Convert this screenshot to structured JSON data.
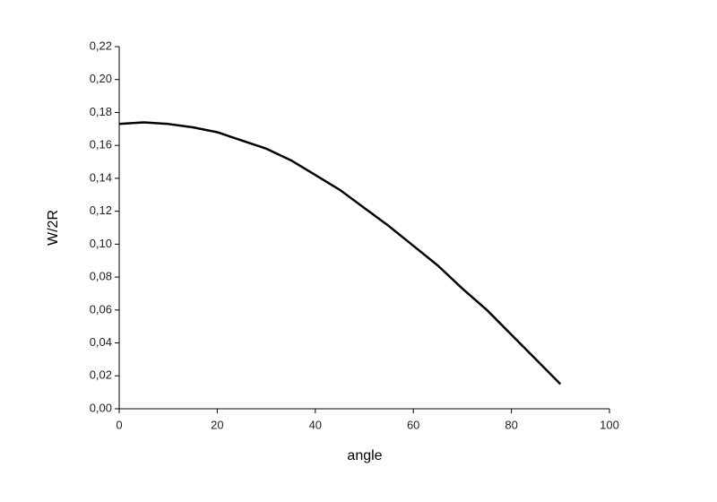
{
  "chart_data": {
    "type": "line",
    "xlabel": "angle",
    "ylabel": "W/2R",
    "x": [
      0,
      5,
      10,
      15,
      20,
      25,
      30,
      35,
      40,
      45,
      50,
      55,
      60,
      65,
      70,
      75,
      80,
      85,
      90
    ],
    "values": [
      0.173,
      0.174,
      0.173,
      0.171,
      0.168,
      0.163,
      0.158,
      0.151,
      0.142,
      0.133,
      0.122,
      0.111,
      0.099,
      0.087,
      0.073,
      0.06,
      0.045,
      0.03,
      0.015
    ],
    "color": "#000000",
    "xlim": [
      0,
      100
    ],
    "xticks": [
      0,
      20,
      40,
      60,
      80,
      100
    ],
    "ylim": [
      0,
      0.22
    ],
    "yticks": [
      {
        "value": 0,
        "label": "0,00"
      },
      {
        "value": 0.02,
        "label": "0,02"
      },
      {
        "value": 0.04,
        "label": "0,04"
      },
      {
        "value": 0.06,
        "label": "0,06"
      },
      {
        "value": 0.08,
        "label": "0,08"
      },
      {
        "value": 0.1,
        "label": "0,10"
      },
      {
        "value": 0.12,
        "label": "0,12"
      },
      {
        "value": 0.14,
        "label": "0,14"
      },
      {
        "value": 0.16,
        "label": "0,16"
      },
      {
        "value": 0.18,
        "label": "0,18"
      },
      {
        "value": 0.2,
        "label": "0,20"
      },
      {
        "value": 0.22,
        "label": "0,22"
      }
    ],
    "grid": false
  }
}
